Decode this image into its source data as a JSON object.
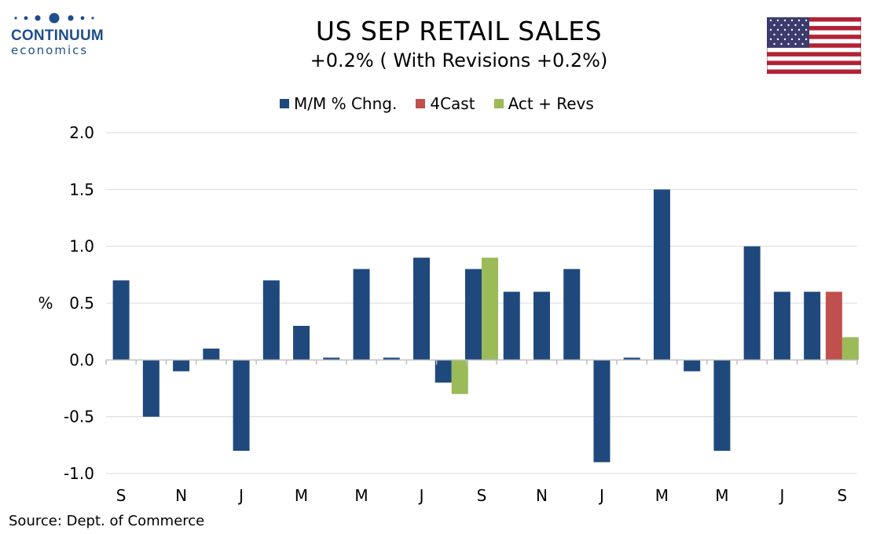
{
  "logo": {
    "name": "CONTINUUM",
    "sub": "economics"
  },
  "title": "US SEP RETAIL SALES",
  "subtitle": "+0.2% ( With Revisions +0.2%)",
  "source": "Source: Dept. of Commerce",
  "flag": {
    "icon": "us-flag-icon"
  },
  "colors": {
    "mm": "#1f497d",
    "forecast": "#c0504d",
    "revised": "#9bbb59",
    "brand": "#1f4e8c"
  },
  "chart_data": {
    "type": "bar",
    "ylabel": "%",
    "ylim": [
      -1.0,
      2.0
    ],
    "yticks": [
      2.0,
      1.5,
      1.0,
      0.5,
      0.0,
      -0.5,
      -1.0
    ],
    "ytick_labels": [
      "2.0",
      "1.5",
      "1.0",
      "0.5",
      "0.0",
      "-0.5",
      "-1.0"
    ],
    "x_tick_labels": [
      "S",
      "N",
      "J",
      "M",
      "M",
      "J",
      "S",
      "N",
      "J",
      "M",
      "M",
      "J",
      "S"
    ],
    "grid": true,
    "legend_position": "top",
    "series": [
      {
        "name": "M/M % Chng.",
        "color": "#1f497d",
        "values": [
          0.7,
          -0.5,
          -0.1,
          0.1,
          -0.8,
          0.7,
          0.3,
          0.02,
          0.8,
          0.02,
          0.9,
          -0.2,
          0.8,
          0.6,
          0.6,
          0.8,
          -0.9,
          0.02,
          1.5,
          -0.1,
          -0.8,
          1.0,
          0.6,
          0.6,
          null
        ]
      },
      {
        "name": "4Cast",
        "color": "#c0504d",
        "values": [
          null,
          null,
          null,
          null,
          null,
          null,
          null,
          null,
          null,
          null,
          null,
          null,
          null,
          null,
          null,
          null,
          null,
          null,
          null,
          null,
          null,
          null,
          null,
          null,
          0.6
        ]
      },
      {
        "name": "Act + Revs",
        "color": "#9bbb59",
        "values": [
          null,
          null,
          null,
          null,
          null,
          null,
          null,
          null,
          null,
          null,
          null,
          -0.3,
          0.9,
          null,
          null,
          null,
          null,
          null,
          null,
          null,
          null,
          null,
          null,
          null,
          0.2
        ]
      }
    ]
  }
}
